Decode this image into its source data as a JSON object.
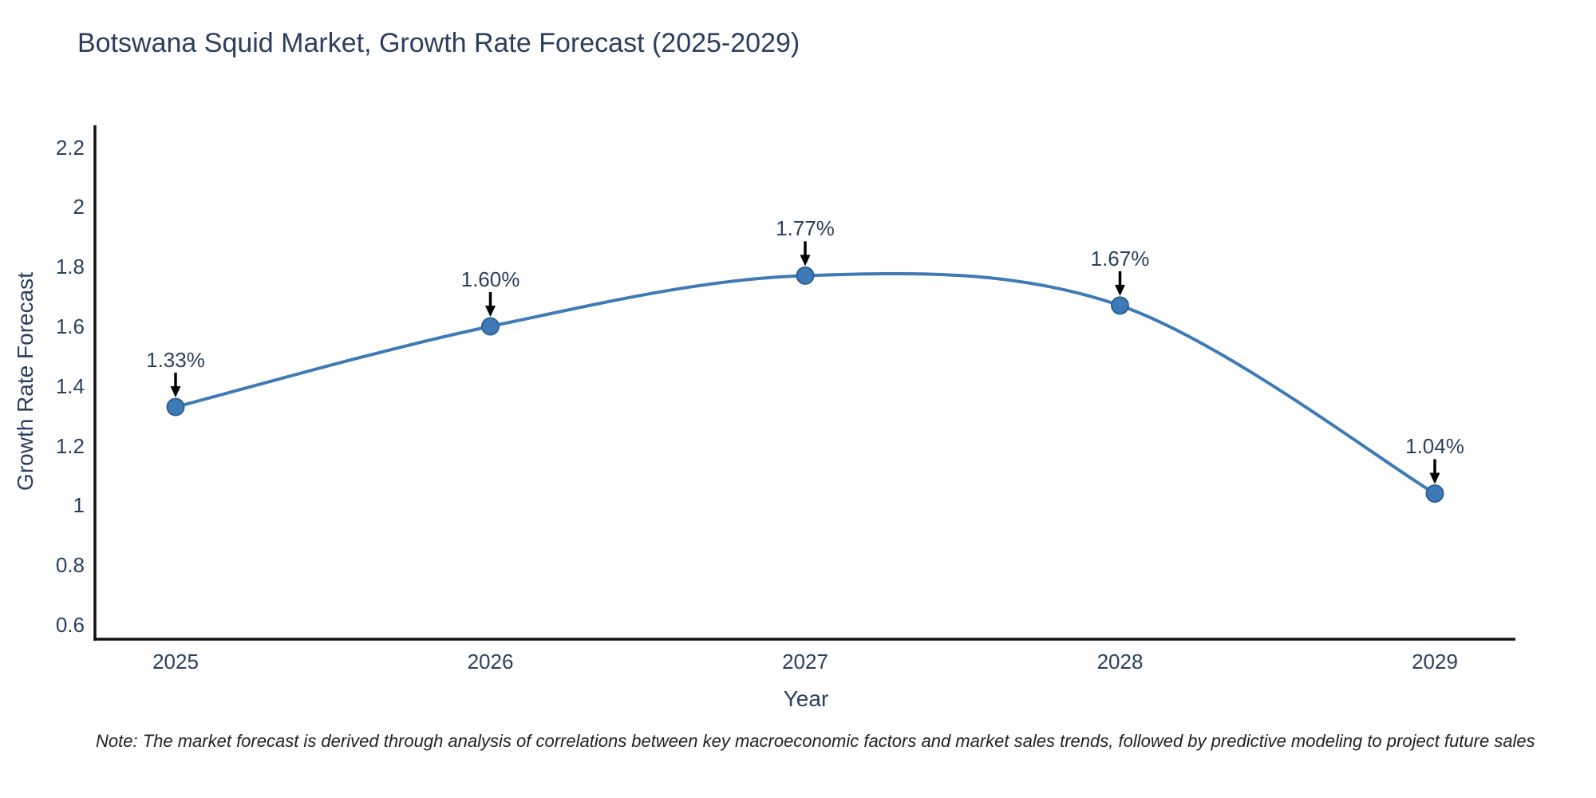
{
  "title": "Botswana Squid Market, Growth Rate Forecast (2025-2029)",
  "axis": {
    "x_title": "Year",
    "y_title": "Growth Rate Forecast"
  },
  "note": "Note: The market forecast is derived through analysis of correlations between key macroeconomic factors and market sales trends, followed by predictive modeling to project future sales",
  "colors": {
    "line": "#3e7ab6",
    "marker_fill": "#3e7ab6",
    "marker_edge": "#2e6193",
    "arrow": "#000000",
    "axis_line": "#111111",
    "text": "#2a3f5f",
    "note_text": "#222222",
    "background": "#ffffff"
  },
  "chart_data": {
    "type": "line",
    "line_shape": "spline",
    "title": "Botswana Squid Market, Growth Rate Forecast (2025-2029)",
    "xlabel": "Year",
    "ylabel": "Growth Rate Forecast",
    "x": [
      2025,
      2026,
      2027,
      2028,
      2029
    ],
    "series": [
      {
        "name": "Growth Rate Forecast",
        "values": [
          1.33,
          1.6,
          1.77,
          1.67,
          1.04
        ]
      }
    ],
    "point_labels": [
      "1.33%",
      "1.60%",
      "1.77%",
      "1.67%",
      "1.04%"
    ],
    "x_ticks": [
      "2025",
      "2026",
      "2027",
      "2028",
      "2029"
    ],
    "y_ticks": [
      0.6,
      0.8,
      1.0,
      1.2,
      1.4,
      1.6,
      1.8,
      2.0,
      2.2
    ],
    "ylim": [
      0.55,
      2.28
    ],
    "grid": false,
    "legend": "none",
    "annotations_have_arrows": true
  }
}
